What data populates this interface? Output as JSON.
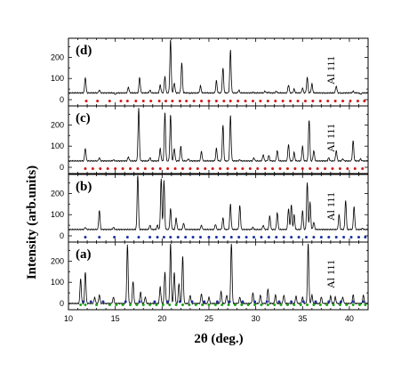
{
  "chart_data": {
    "type": "line",
    "xlabel": "2θ (deg.)",
    "ylabel": "Intensity (arb.units)",
    "xlim": [
      10,
      42
    ],
    "x_ticks": [
      10,
      15,
      20,
      25,
      30,
      35,
      40
    ],
    "y_ticks": [
      0,
      100,
      200
    ],
    "ylim": [
      0,
      290
    ],
    "annotation": "Al 111",
    "annotation_x": 38.5,
    "panels": [
      {
        "label": "(d)",
        "baseline": 32,
        "peaks": [
          [
            11.8,
            105
          ],
          [
            13.3,
            45
          ],
          [
            15.0,
            25
          ],
          [
            16.4,
            60
          ],
          [
            17.6,
            105
          ],
          [
            18.7,
            45
          ],
          [
            19.8,
            70
          ],
          [
            20.3,
            110
          ],
          [
            20.9,
            285
          ],
          [
            21.3,
            80
          ],
          [
            22.1,
            175
          ],
          [
            23.0,
            30
          ],
          [
            24.1,
            65
          ],
          [
            25.8,
            90
          ],
          [
            26.5,
            150
          ],
          [
            27.3,
            235
          ],
          [
            28.2,
            45
          ],
          [
            29.7,
            35
          ],
          [
            31.0,
            40
          ],
          [
            31.4,
            35
          ],
          [
            32.2,
            40
          ],
          [
            33.5,
            70
          ],
          [
            34.1,
            50
          ],
          [
            35.0,
            55
          ],
          [
            35.5,
            105
          ],
          [
            36.0,
            75
          ],
          [
            37.5,
            30
          ],
          [
            38.6,
            65
          ],
          [
            39.2,
            30
          ],
          [
            40.4,
            40
          ],
          [
            41.2,
            25
          ]
        ],
        "markers": [
          {
            "color": "#d01818",
            "x": [
              11.9,
              13.1,
              14.4,
              15.6,
              16.3,
              17.2,
              18.0,
              18.8,
              19.7,
              20.4,
              21.1,
              21.9,
              22.6,
              23.4,
              24.2,
              25.0,
              25.8,
              26.6,
              27.3,
              28.1,
              28.9,
              29.7,
              30.5,
              31.3,
              32.1,
              32.9,
              33.7,
              34.5,
              35.3,
              36.1,
              36.9,
              37.7,
              38.5,
              39.3,
              40.1,
              40.9,
              41.6
            ]
          }
        ]
      },
      {
        "label": "(c)",
        "baseline": 30,
        "peaks": [
          [
            11.8,
            90
          ],
          [
            13.3,
            45
          ],
          [
            14.8,
            35
          ],
          [
            16.4,
            50
          ],
          [
            17.5,
            280
          ],
          [
            18.7,
            45
          ],
          [
            19.8,
            90
          ],
          [
            20.3,
            260
          ],
          [
            20.9,
            250
          ],
          [
            21.3,
            90
          ],
          [
            22.0,
            100
          ],
          [
            22.8,
            40
          ],
          [
            24.2,
            75
          ],
          [
            25.8,
            90
          ],
          [
            26.5,
            200
          ],
          [
            27.3,
            245
          ],
          [
            28.3,
            35
          ],
          [
            29.8,
            45
          ],
          [
            30.8,
            60
          ],
          [
            31.4,
            55
          ],
          [
            32.3,
            80
          ],
          [
            33.5,
            110
          ],
          [
            34.1,
            70
          ],
          [
            35.0,
            100
          ],
          [
            35.7,
            225
          ],
          [
            36.2,
            80
          ],
          [
            37.8,
            45
          ],
          [
            38.6,
            80
          ],
          [
            39.3,
            40
          ],
          [
            40.4,
            125
          ],
          [
            41.2,
            40
          ]
        ],
        "markers": [
          {
            "color": "#d01818",
            "x": [
              11.8,
              12.6,
              13.4,
              14.2,
              15.0,
              15.8,
              16.6,
              17.4,
              18.2,
              19.0,
              19.8,
              20.6,
              21.4,
              22.2,
              23.0,
              23.8,
              24.6,
              25.4,
              26.2,
              27.0,
              27.8,
              28.6,
              29.4,
              30.2,
              31.0,
              31.8,
              32.6,
              33.4,
              34.2,
              35.0,
              35.8,
              36.6,
              37.4,
              38.2,
              39.0,
              39.8,
              40.6,
              41.4
            ]
          }
        ]
      },
      {
        "label": "(b)",
        "baseline": 30,
        "peaks": [
          [
            11.8,
            40
          ],
          [
            13.3,
            120
          ],
          [
            14.8,
            40
          ],
          [
            16.4,
            30
          ],
          [
            17.4,
            290
          ],
          [
            18.7,
            50
          ],
          [
            19.5,
            50
          ],
          [
            19.9,
            270
          ],
          [
            20.2,
            260
          ],
          [
            20.9,
            130
          ],
          [
            21.5,
            85
          ],
          [
            22.3,
            60
          ],
          [
            23.0,
            30
          ],
          [
            24.2,
            50
          ],
          [
            25.7,
            55
          ],
          [
            26.5,
            85
          ],
          [
            27.3,
            150
          ],
          [
            28.3,
            145
          ],
          [
            29.7,
            40
          ],
          [
            30.8,
            50
          ],
          [
            31.5,
            95
          ],
          [
            32.3,
            110
          ],
          [
            33.5,
            130
          ],
          [
            33.8,
            145
          ],
          [
            34.1,
            100
          ],
          [
            35.0,
            120
          ],
          [
            35.5,
            250
          ],
          [
            35.8,
            160
          ],
          [
            36.2,
            65
          ],
          [
            37.8,
            30
          ],
          [
            38.9,
            100
          ],
          [
            39.6,
            170
          ],
          [
            40.5,
            140
          ],
          [
            41.4,
            35
          ]
        ],
        "markers": [
          {
            "color": "#1a2fa0",
            "x": [
              11.8,
              13.3,
              14.9,
              16.3,
              17.5,
              18.7,
              19.5,
              20.2,
              20.9,
              21.7,
              22.5,
              23.3,
              24.1,
              25.0,
              25.8,
              26.6,
              27.4,
              28.2,
              29.0,
              29.8,
              30.6,
              31.4,
              32.2,
              33.0,
              33.8,
              34.6,
              35.4,
              36.2,
              37.0,
              37.8,
              38.6,
              39.4,
              40.2,
              41.0,
              41.7
            ]
          }
        ]
      },
      {
        "label": "(a)",
        "baseline": 0,
        "peaks": [
          [
            11.3,
            120
          ],
          [
            11.8,
            150
          ],
          [
            12.8,
            30
          ],
          [
            13.3,
            40
          ],
          [
            14.8,
            30
          ],
          [
            16.3,
            275
          ],
          [
            16.9,
            105
          ],
          [
            17.7,
            55
          ],
          [
            18.2,
            30
          ],
          [
            19.8,
            80
          ],
          [
            20.3,
            150
          ],
          [
            20.9,
            285
          ],
          [
            21.3,
            150
          ],
          [
            21.8,
            95
          ],
          [
            22.2,
            225
          ],
          [
            23.0,
            40
          ],
          [
            24.2,
            45
          ],
          [
            25.0,
            30
          ],
          [
            26.3,
            55
          ],
          [
            26.9,
            40
          ],
          [
            27.4,
            285
          ],
          [
            28.3,
            30
          ],
          [
            29.7,
            50
          ],
          [
            30.5,
            40
          ],
          [
            31.3,
            70
          ],
          [
            32.1,
            40
          ],
          [
            33.0,
            40
          ],
          [
            34.3,
            35
          ],
          [
            35.0,
            30
          ],
          [
            35.6,
            285
          ],
          [
            36.0,
            40
          ],
          [
            37.0,
            30
          ],
          [
            38.0,
            35
          ],
          [
            38.5,
            30
          ],
          [
            39.3,
            30
          ],
          [
            40.4,
            40
          ],
          [
            41.5,
            40
          ]
        ],
        "markers": [
          {
            "color": "#18a418",
            "x": [
              11.3,
              11.8,
              13.0,
              14.4,
              15.1,
              15.8,
              16.6,
              17.3,
              18.0,
              18.7,
              19.4,
              20.1,
              20.8,
              21.5,
              22.2,
              22.9,
              23.6,
              24.3,
              25.0,
              25.7,
              26.4,
              27.1,
              27.8,
              28.5,
              29.2,
              29.9,
              30.6,
              31.3,
              32.0,
              32.7,
              33.4,
              34.1,
              34.8,
              35.5,
              36.2,
              36.9,
              37.6,
              38.3,
              39.0,
              39.7,
              40.4,
              41.1,
              41.7
            ]
          },
          {
            "color": "#1a2fa0",
            "x": [
              11.6,
              12.4,
              13.7,
              16.1,
              17.6,
              19.2,
              20.6,
              21.9,
              23.2,
              24.5,
              25.9,
              27.2,
              28.6,
              29.9,
              31.2,
              32.5,
              33.8,
              35.1,
              36.4,
              37.8,
              39.1,
              40.4,
              41.5
            ]
          }
        ]
      }
    ]
  }
}
